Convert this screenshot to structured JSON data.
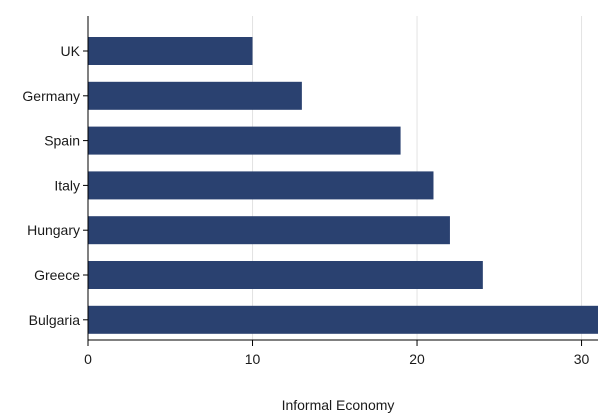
{
  "chart_data": {
    "type": "bar",
    "orientation": "horizontal",
    "title": "",
    "xlabel": "Informal Economy",
    "ylabel": "",
    "categories": [
      "UK",
      "Germany",
      "Spain",
      "Italy",
      "Hungary",
      "Greece",
      "Bulgaria"
    ],
    "values": [
      10,
      13,
      19,
      21,
      22,
      24,
      31
    ],
    "xlim": [
      0,
      31
    ],
    "xticks": [
      0,
      10,
      20,
      30
    ],
    "grid": true,
    "legend": "none",
    "bar_color": "#2a4170"
  }
}
